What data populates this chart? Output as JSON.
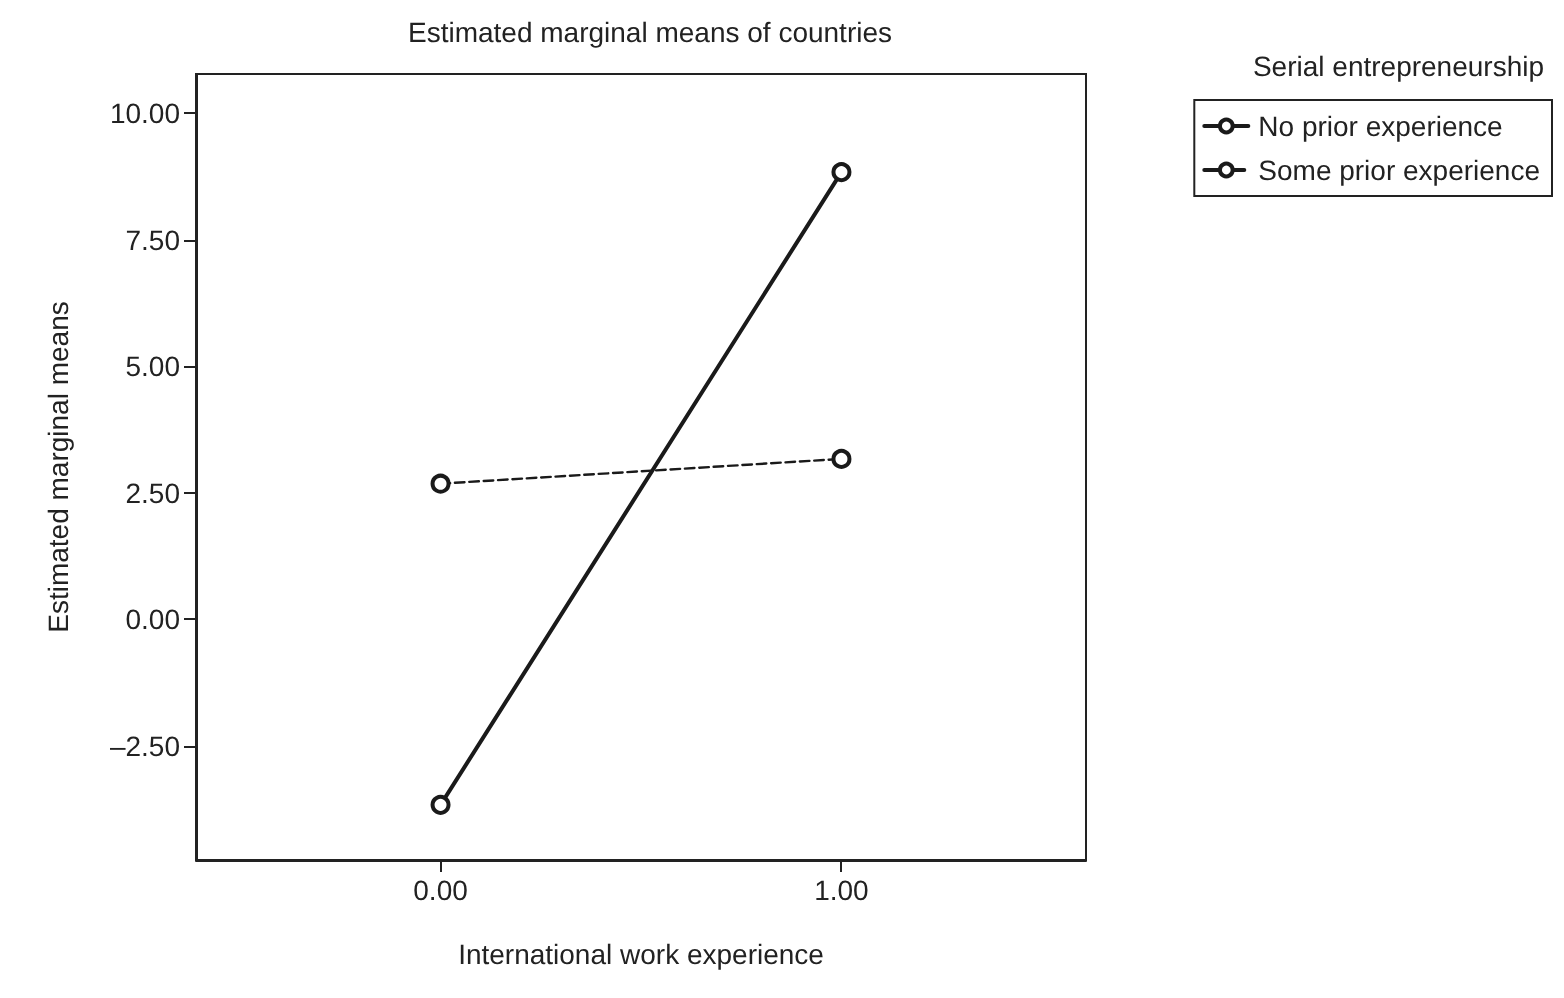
{
  "chart_data": {
    "type": "line",
    "title": "Estimated marginal means of countries",
    "xlabel": "International work experience",
    "ylabel": "Estimated marginal means",
    "legend_title": "Serial entrepreneurship",
    "x": [
      0,
      1
    ],
    "series": [
      {
        "name": "No prior experience",
        "color": "#1a1a1a",
        "values": [
          -3.67,
          8.84
        ],
        "line_style": "solid"
      },
      {
        "name": "Some prior experience",
        "color": "#1a1a1a",
        "values": [
          2.68,
          3.17
        ],
        "line_style": "dashed"
      }
    ],
    "xlim": [
      -0.61,
      1.61
    ],
    "xticks": [
      {
        "value": 0,
        "label": "0.00"
      },
      {
        "value": 1,
        "label": "1.00"
      }
    ],
    "ylim": [
      -4.76,
      10.78
    ],
    "yticks": [
      {
        "value": -2.5,
        "label": "–2.50"
      },
      {
        "value": 0,
        "label": "0.00"
      },
      {
        "value": 2.5,
        "label": "2.50"
      },
      {
        "value": 5,
        "label": "5.00"
      },
      {
        "value": 7.5,
        "label": "7.50"
      },
      {
        "value": 10,
        "label": "10.00"
      }
    ],
    "grid": false,
    "legend": "top right",
    "marker": "circle"
  }
}
